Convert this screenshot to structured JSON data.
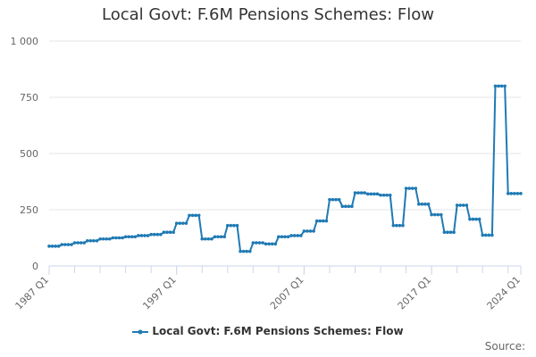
{
  "title": "Local Govt: F.6M Pensions Schemes: Flow",
  "legend_label": "Local Govt: F.6M Pensions Schemes: Flow",
  "source_label": "Source:",
  "colors": {
    "series": "#1f7ab4",
    "grid": "#e6e6e6",
    "axis": "#ccd6eb",
    "text": "#666666"
  },
  "chart_data": {
    "type": "line",
    "title": "Local Govt: F.6M Pensions Schemes: Flow",
    "x_start": "1987 Q1",
    "x_end": "2024 Q1",
    "x_tick_labels": [
      "1987 Q1",
      "1997 Q1",
      "2007 Q1",
      "2017 Q1",
      "2024 Q1"
    ],
    "y_tick_labels": [
      "0",
      "250",
      "500",
      "750",
      "1 000"
    ],
    "ylim": [
      0,
      1000
    ],
    "legend_position": "bottom",
    "grid": true,
    "series": [
      {
        "name": "Local Govt: F.6M Pensions Schemes: Flow",
        "start": "1987 Q1",
        "frequency": "quarterly",
        "values": [
          88,
          88,
          88,
          88,
          95,
          95,
          95,
          95,
          103,
          103,
          103,
          103,
          112,
          112,
          112,
          112,
          120,
          120,
          120,
          120,
          125,
          125,
          125,
          125,
          130,
          130,
          130,
          130,
          135,
          135,
          135,
          135,
          140,
          140,
          140,
          140,
          150,
          150,
          150,
          150,
          190,
          190,
          190,
          190,
          225,
          225,
          225,
          225,
          120,
          120,
          120,
          120,
          130,
          130,
          130,
          130,
          180,
          180,
          180,
          180,
          65,
          65,
          65,
          65,
          103,
          103,
          103,
          103,
          98,
          98,
          98,
          98,
          130,
          130,
          130,
          130,
          135,
          135,
          135,
          135,
          155,
          155,
          155,
          155,
          200,
          200,
          200,
          200,
          295,
          295,
          295,
          295,
          265,
          265,
          265,
          265,
          325,
          325,
          325,
          325,
          320,
          320,
          320,
          320,
          315,
          315,
          315,
          315,
          180,
          180,
          180,
          180,
          345,
          345,
          345,
          345,
          275,
          275,
          275,
          275,
          228,
          228,
          228,
          228,
          150,
          150,
          150,
          150,
          270,
          270,
          270,
          270,
          208,
          208,
          208,
          208,
          137,
          137,
          137,
          137,
          800,
          800,
          800,
          800,
          322,
          322,
          322,
          322,
          322
        ]
      }
    ]
  }
}
